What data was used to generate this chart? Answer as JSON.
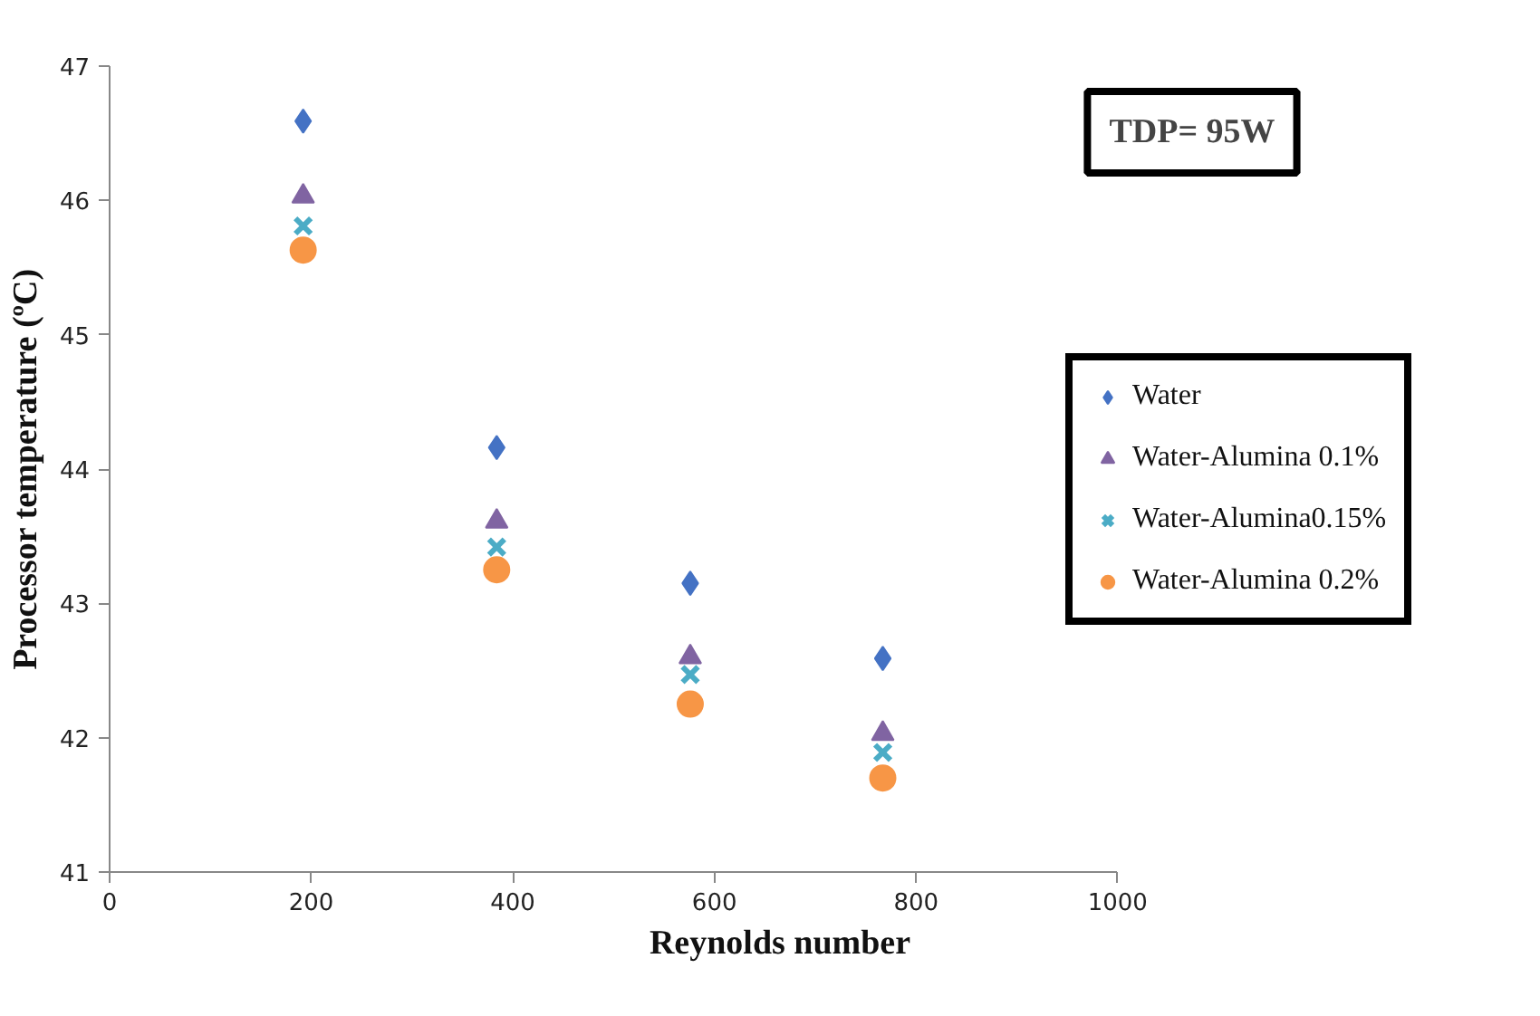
{
  "chart_data": {
    "type": "scatter",
    "xlabel": "Reynolds number",
    "ylabel": "Processor temperature (ºC)",
    "x": [
      192,
      384,
      576,
      767
    ],
    "xlim": [
      0,
      1000
    ],
    "xticks": [
      0,
      200,
      400,
      600,
      800,
      1000
    ],
    "ylim": [
      41,
      47
    ],
    "yticks": [
      41,
      42,
      43,
      44,
      45,
      46,
      47
    ],
    "grid": false,
    "legend": "right",
    "annotations": [
      "TDP= 95W"
    ],
    "series": [
      {
        "name": "Water",
        "color": "#4472c4",
        "marker": "diamond",
        "values": [
          46.59,
          44.16,
          43.15,
          42.59
        ]
      },
      {
        "name": "Water-Alumina 0.1%",
        "color": "#8064a2",
        "marker": "triangle",
        "values": [
          46.03,
          43.61,
          42.6,
          42.03
        ]
      },
      {
        "name": "Water-Alumina0.15%",
        "color": "#4bacc6",
        "marker": "cross",
        "values": [
          45.81,
          43.42,
          42.47,
          41.89
        ]
      },
      {
        "name": "Water-Alumina 0.2%",
        "color": "#f79646",
        "marker": "circle",
        "values": [
          45.63,
          43.25,
          42.25,
          41.7
        ]
      }
    ]
  }
}
